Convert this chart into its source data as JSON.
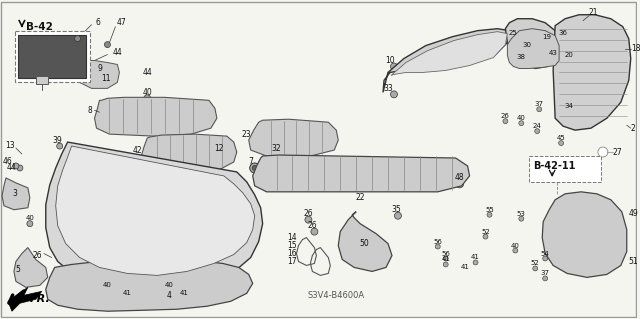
{
  "bg_color": "#f5f5f0",
  "diagram_code": "S3V4-B4600A",
  "border_color": "#aaaaaa",
  "text_color": "#111111",
  "line_color": "#222222",
  "gray": "#666666",
  "darkgray": "#333333",
  "b42_label": "B-42",
  "b42_11_label": "B-42-11",
  "fr_label": "FR.",
  "parts": {
    "front_bumper_outer": {
      "x": [
        72,
        68,
        62,
        55,
        50,
        50,
        55,
        65,
        85,
        115,
        155,
        190,
        218,
        238,
        252,
        258,
        262,
        260,
        255,
        248,
        242
      ],
      "y": [
        148,
        158,
        172,
        190,
        210,
        232,
        248,
        260,
        270,
        276,
        278,
        276,
        270,
        262,
        250,
        238,
        222,
        205,
        192,
        180,
        170
      ]
    },
    "front_bumper_inner": {
      "x": [
        75,
        70,
        65,
        60,
        58,
        62,
        72,
        90,
        118,
        155,
        190,
        218,
        238,
        252,
        256,
        254,
        248,
        240,
        230,
        218,
        205,
        190,
        175,
        160,
        148,
        138,
        128,
        118,
        108,
        98,
        88,
        80,
        75
      ],
      "y": [
        150,
        160,
        172,
        188,
        208,
        228,
        244,
        256,
        264,
        270,
        270,
        264,
        256,
        244,
        232,
        218,
        205,
        195,
        188,
        183,
        180,
        177,
        175,
        174,
        172,
        170,
        168,
        165,
        162,
        158,
        155,
        152,
        150
      ]
    },
    "lower_skirt": {
      "x": [
        60,
        55,
        50,
        52,
        62,
        80,
        110,
        148,
        180,
        210,
        235,
        248,
        252,
        248,
        238,
        222,
        205,
        185,
        162,
        140,
        118,
        98,
        80,
        68,
        60
      ],
      "y": [
        270,
        280,
        292,
        302,
        308,
        312,
        312,
        310,
        308,
        305,
        300,
        292,
        282,
        272,
        266,
        262,
        260,
        260,
        260,
        260,
        262,
        264,
        266,
        268,
        270
      ]
    }
  },
  "font_size_label": 5.5,
  "font_size_ref": 7.0,
  "font_size_code": 6.0
}
